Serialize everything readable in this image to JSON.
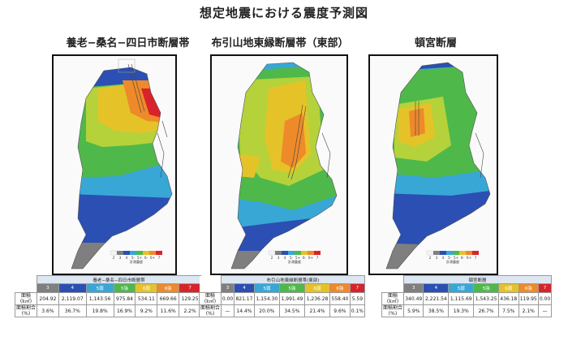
{
  "title": "想定地震における震度予測図",
  "panels": [
    {
      "name": "養老−桑名−四日市断層帯",
      "legend_ticks": [
        "2",
        "3",
        "4",
        "5-",
        "5+",
        "6-",
        "6+",
        "7"
      ],
      "legend_label": "計測震度",
      "table": {
        "header": "養老−桑名−四日市断層帯",
        "levels": [
          "3",
          "4",
          "5弱",
          "5強",
          "6弱",
          "6強",
          "7"
        ],
        "area_label": [
          "面積",
          "(k㎡)"
        ],
        "area": [
          "204.92",
          "2,119.07",
          "1,143.56",
          "975.84",
          "534.11",
          "669.66",
          "129.25"
        ],
        "ratio_label": [
          "面積割合",
          "(%)"
        ],
        "ratio": [
          "3.6%",
          "36.7%",
          "19.8%",
          "16.9%",
          "9.2%",
          "11.6%",
          "2.2%"
        ]
      }
    },
    {
      "name": "布引山地東縁断層帯（東部）",
      "legend_ticks": [
        "2",
        "3",
        "4",
        "5-",
        "5+",
        "6-",
        "6+",
        "7"
      ],
      "legend_label": "計測震度",
      "table": {
        "header": "布引山地東縁断層帯(東部)",
        "levels": [
          "3",
          "4",
          "5弱",
          "5強",
          "6弱",
          "6強",
          "7"
        ],
        "area_label": [
          "面積",
          "(k㎡)"
        ],
        "area": [
          "0.00",
          "821.17",
          "1,154.30",
          "1,991.49",
          "1,236.28",
          "558.40",
          "5.59"
        ],
        "ratio_label": [
          "面積割合",
          "(%)"
        ],
        "ratio": [
          "—",
          "14.4%",
          "20.0%",
          "34.5%",
          "21.4%",
          "9.6%",
          "0.1%"
        ]
      }
    },
    {
      "name": "頓宮断層",
      "legend_ticks": [
        "2",
        "3",
        "4",
        "5-",
        "5+",
        "6-",
        "6+",
        "7"
      ],
      "legend_label": "計測震度",
      "table": {
        "header": "頓宮断層",
        "levels": [
          "3",
          "4",
          "5弱",
          "5強",
          "6弱",
          "6強",
          "7"
        ],
        "area_label": [
          "面積",
          "(k㎡)"
        ],
        "area": [
          "340.49",
          "2,221.54",
          "1,115.69",
          "1,543.25",
          "436.18",
          "119.95",
          "0.00"
        ],
        "ratio_label": [
          "面積割合",
          "(%)"
        ],
        "ratio": [
          "5.9%",
          "38.5%",
          "19.3%",
          "26.7%",
          "7.5%",
          "2.1%",
          "—"
        ]
      }
    }
  ],
  "colors": {
    "level_3": "#7f7f7f",
    "level_4": "#2b4fb3",
    "level_5_low": "#38a7d6",
    "level_5_high": "#4fb84a",
    "level_6_low": "#e6c229",
    "level_6_high": "#ee8a2a",
    "level_7": "#d9232a",
    "yellow_green": "#b5d23a"
  }
}
